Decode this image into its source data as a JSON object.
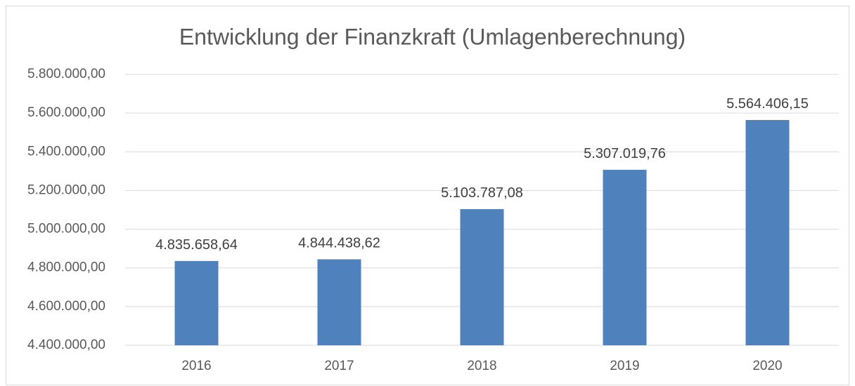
{
  "chart_data": {
    "type": "bar",
    "title": "Entwicklung der Finanzkraft (Umlagenberechnung)",
    "categories": [
      "2016",
      "2017",
      "2018",
      "2019",
      "2020"
    ],
    "values": [
      4835658.64,
      4844438.62,
      5103787.08,
      5307019.76,
      5564406.15
    ],
    "value_labels": [
      "4.835.658,64",
      "4.844.438,62",
      "5.103.787,08",
      "5.307.019,76",
      "5.564.406,15"
    ],
    "color": "#4f81bd",
    "ylim": [
      4400000,
      5800000
    ],
    "yticks": [
      {
        "value": 4400000,
        "label": "4.400.000,00"
      },
      {
        "value": 4600000,
        "label": "4.600.000,00"
      },
      {
        "value": 4800000,
        "label": "4.800.000,00"
      },
      {
        "value": 5000000,
        "label": "5.000.000,00"
      },
      {
        "value": 5200000,
        "label": "5.200.000,00"
      },
      {
        "value": 5400000,
        "label": "5.400.000,00"
      },
      {
        "value": 5600000,
        "label": "5.600.000,00"
      },
      {
        "value": 5800000,
        "label": "5.800.000,00"
      }
    ],
    "grid": true
  }
}
